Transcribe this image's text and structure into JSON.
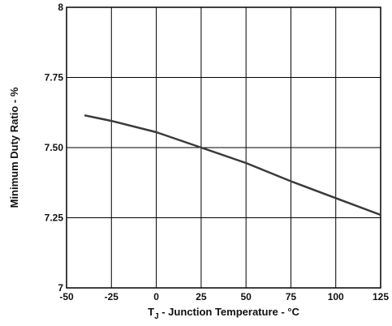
{
  "chart_data": {
    "type": "line",
    "title": "",
    "xlabel": {
      "prefix": "T",
      "subscript": "J",
      "suffix": " - Junction Temperature -  °C"
    },
    "ylabel": "Minimum Duty Ratio - %",
    "xlim": [
      -50,
      125
    ],
    "ylim": [
      7,
      8
    ],
    "x_ticks": [
      -50,
      -25,
      0,
      25,
      50,
      75,
      100,
      125
    ],
    "x_tick_labels": [
      "-50",
      "-25",
      "0",
      "25",
      "50",
      "75",
      "100",
      "125"
    ],
    "y_ticks": [
      7,
      7.25,
      7.5,
      7.75,
      8
    ],
    "y_tick_labels": [
      "7",
      "7.25",
      "7.50",
      "7.75",
      "8"
    ],
    "grid": true,
    "series": [
      {
        "x": [
          -40,
          -25,
          0,
          25,
          50,
          75,
          100,
          125
        ],
        "y": [
          7.615,
          7.595,
          7.555,
          7.5,
          7.445,
          7.38,
          7.32,
          7.26
        ]
      }
    ],
    "colors": {
      "line": "#3a3a3a",
      "grid": "#000000",
      "frame": "#000000"
    }
  }
}
